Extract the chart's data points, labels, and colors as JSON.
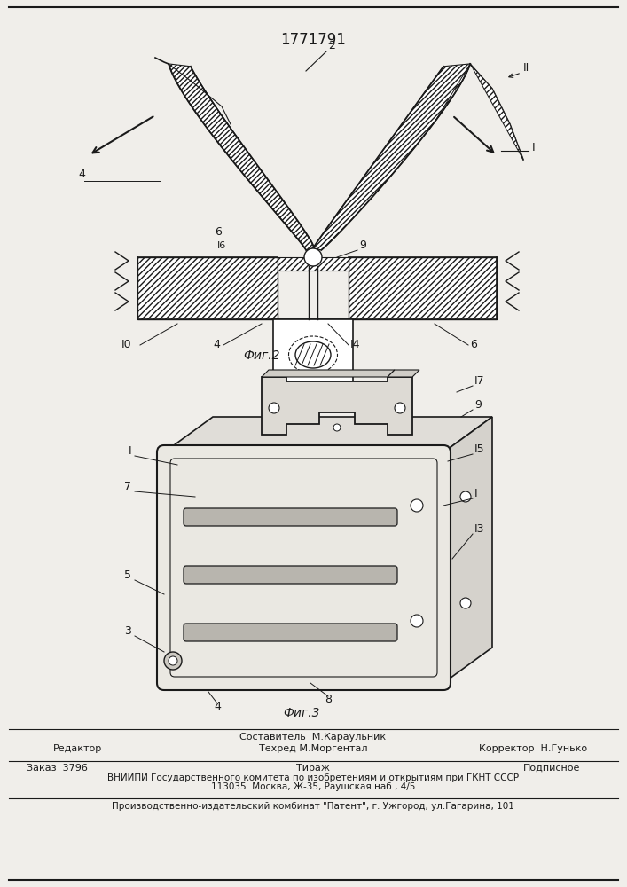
{
  "title_number": "1771791",
  "fig2_label": "Фиг.2",
  "fig3_label": "Фиг.3",
  "footer_line1_left": "Редактор",
  "footer_line1_center1": "Составитель  М.Караульник",
  "footer_line1_center2": "Техред М.Моргентал",
  "footer_line1_right": "Корректор  Н.Гунько",
  "footer_line2_col1": "Заказ  3796",
  "footer_line2_col2": "Тираж",
  "footer_line2_col3": "Подписное",
  "footer_line3": "ВНИИПИ Государственного комитета по изобретениям и открытиям при ГКНТ СССР",
  "footer_line4": "113035. Москва, Ж-35, Раушская наб., 4/5",
  "footer_line5": "Производственно-издательский комбинат \"Патент\", г. Ужгород, ул.Гагарина, 101",
  "bg_color": "#f0eeea",
  "line_color": "#1a1a1a"
}
